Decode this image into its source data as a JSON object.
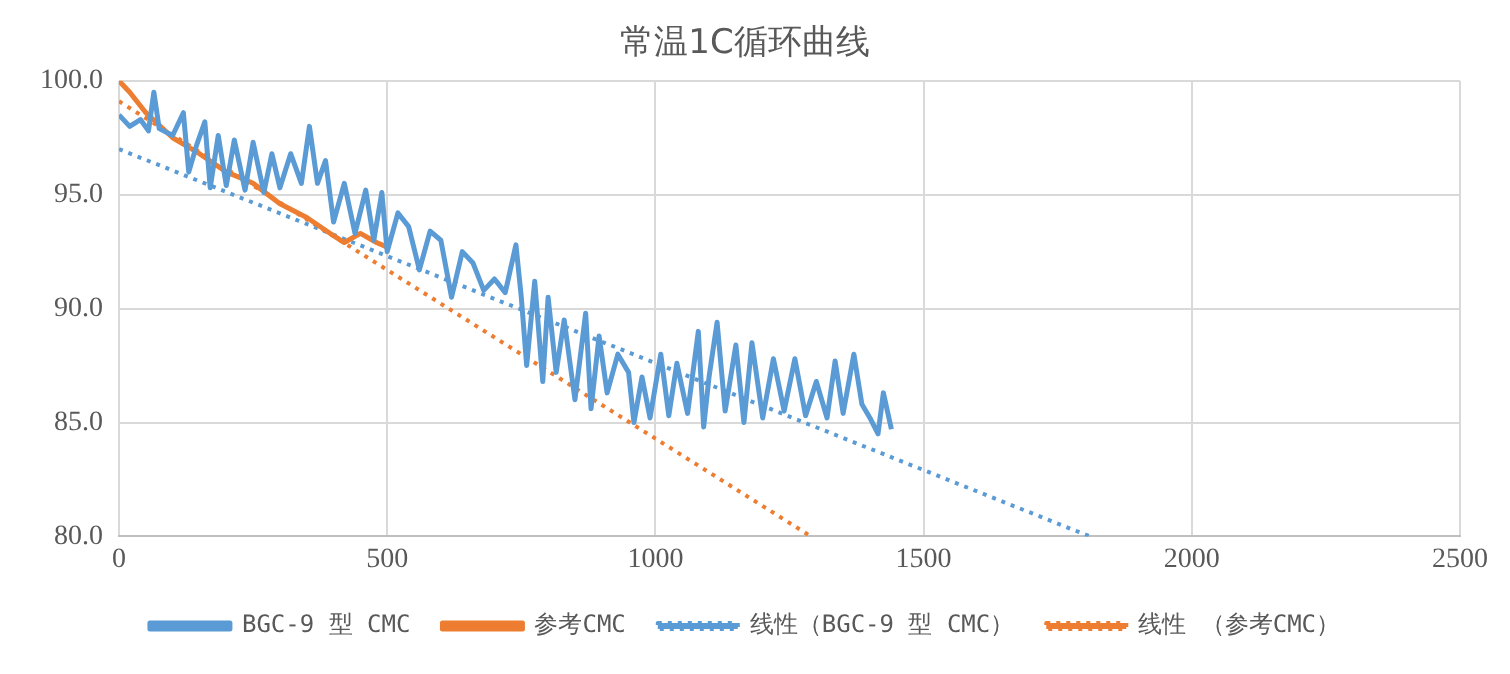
{
  "chart_data": {
    "type": "line",
    "title": "常温1C循环曲线",
    "xlim": [
      0,
      2500
    ],
    "xticks": [
      0,
      500,
      1000,
      1500,
      2000,
      2500
    ],
    "ylim": [
      80,
      100
    ],
    "yticks": [
      {
        "value": 80,
        "label": "80.0"
      },
      {
        "value": 85,
        "label": "85.0"
      },
      {
        "value": 90,
        "label": "90.0"
      },
      {
        "value": 95,
        "label": "95.0"
      },
      {
        "value": 100,
        "label": "100.0"
      }
    ],
    "grid": true,
    "legend": "bottom",
    "marker": "none",
    "series": [
      {
        "name": "BGC-9 型 CMC",
        "color": "#5b9bd5",
        "line_style": "solid",
        "x": [
          0,
          20,
          40,
          55,
          65,
          75,
          100,
          120,
          130,
          145,
          160,
          170,
          185,
          200,
          215,
          235,
          250,
          270,
          285,
          300,
          320,
          340,
          355,
          370,
          385,
          400,
          420,
          440,
          460,
          475,
          490,
          500,
          520,
          540,
          560,
          580,
          600,
          620,
          640,
          660,
          680,
          700,
          720,
          740,
          750,
          760,
          775,
          790,
          800,
          815,
          830,
          850,
          870,
          880,
          895,
          910,
          930,
          950,
          960,
          975,
          990,
          1010,
          1025,
          1040,
          1060,
          1080,
          1090,
          1100,
          1115,
          1130,
          1150,
          1165,
          1180,
          1200,
          1220,
          1240,
          1260,
          1280,
          1300,
          1320,
          1335,
          1350,
          1370,
          1385,
          1400,
          1415,
          1425,
          1440
        ],
        "values": [
          98.5,
          98.0,
          98.3,
          97.8,
          99.5,
          97.9,
          97.6,
          98.6,
          96.0,
          97.2,
          98.2,
          95.3,
          97.6,
          95.4,
          97.4,
          95.2,
          97.3,
          95.1,
          96.8,
          95.3,
          96.8,
          95.5,
          98.0,
          95.5,
          96.5,
          93.8,
          95.5,
          93.3,
          95.2,
          93.0,
          95.1,
          92.5,
          94.2,
          93.6,
          91.7,
          93.4,
          93.0,
          90.5,
          92.5,
          92.0,
          90.8,
          91.3,
          90.7,
          92.8,
          90.5,
          87.5,
          91.2,
          86.8,
          90.5,
          87.2,
          89.5,
          86.0,
          89.8,
          85.6,
          88.8,
          86.3,
          88.0,
          87.2,
          85.0,
          87.0,
          85.2,
          88.0,
          85.3,
          87.6,
          85.4,
          89.0,
          84.8,
          87.0,
          89.4,
          85.5,
          88.4,
          85.0,
          88.5,
          85.2,
          87.8,
          85.5,
          87.8,
          85.3,
          86.8,
          85.2,
          87.7,
          85.4,
          88.0,
          85.8,
          85.2,
          84.5,
          86.3,
          84.7
        ]
      },
      {
        "name": "参考CMC",
        "color": "#ed7d31",
        "line_style": "solid",
        "x": [
          0,
          20,
          50,
          100,
          150,
          200,
          250,
          300,
          350,
          400,
          420,
          450,
          480,
          500
        ],
        "values": [
          100,
          99.5,
          98.6,
          97.5,
          96.8,
          96.0,
          95.5,
          94.6,
          94.0,
          93.2,
          92.9,
          93.3,
          92.9,
          92.7
        ]
      },
      {
        "name": "线性（BGC-9 型 CMC）",
        "color": "#5b9bd5",
        "line_style": "dotted",
        "x": [
          0,
          1810
        ],
        "values": [
          97.0,
          80.0
        ]
      },
      {
        "name": "线性 （参考CMC）",
        "color": "#ed7d31",
        "line_style": "dotted",
        "x": [
          0,
          1290
        ],
        "values": [
          99.1,
          80.0
        ]
      }
    ]
  }
}
